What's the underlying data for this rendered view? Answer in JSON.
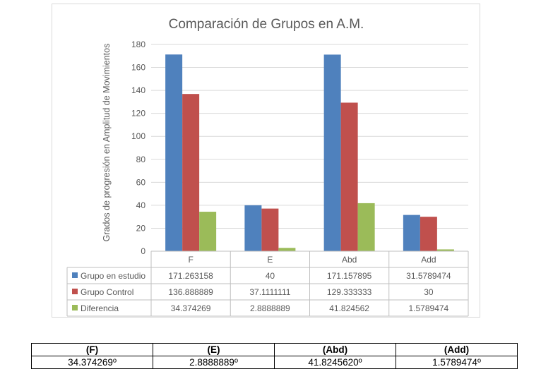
{
  "chart_data": {
    "type": "bar",
    "title": "Comparación de Grupos en A.M.",
    "ylabel": "Grados de progresión en Amplitud de Movimientos",
    "xlabel": "",
    "ylim": [
      0,
      180
    ],
    "yticks": [
      0,
      20,
      40,
      60,
      80,
      100,
      120,
      140,
      160,
      180
    ],
    "grid": true,
    "legend": "data-table",
    "categories": [
      "F",
      "E",
      "Abd",
      "Add"
    ],
    "series": [
      {
        "name": "Grupo en estudio",
        "color": "#4f81bd",
        "values": [
          171.263158,
          40,
          171.157895,
          31.5789474
        ],
        "labels": [
          "171.263158",
          "40",
          "171.157895",
          "31.5789474"
        ]
      },
      {
        "name": "Grupo Control",
        "color": "#c0504d",
        "values": [
          136.888889,
          37.1111111,
          129.333333,
          30
        ],
        "labels": [
          "136.888889",
          "37.1111111",
          "129.333333",
          "30"
        ]
      },
      {
        "name": "Diferencia",
        "color": "#9bbb59",
        "values": [
          34.374269,
          2.8888889,
          41.824562,
          1.5789474
        ],
        "labels": [
          "34.374269",
          "2.8888889",
          "41.824562",
          "1.5789474"
        ]
      }
    ]
  },
  "summary_table": {
    "headers": [
      "(F)",
      "(E)",
      "(Abd)",
      "(Add)"
    ],
    "values": [
      "34.374269º",
      "2.8888889º",
      "41.8245620º",
      "1.5789474º"
    ]
  }
}
